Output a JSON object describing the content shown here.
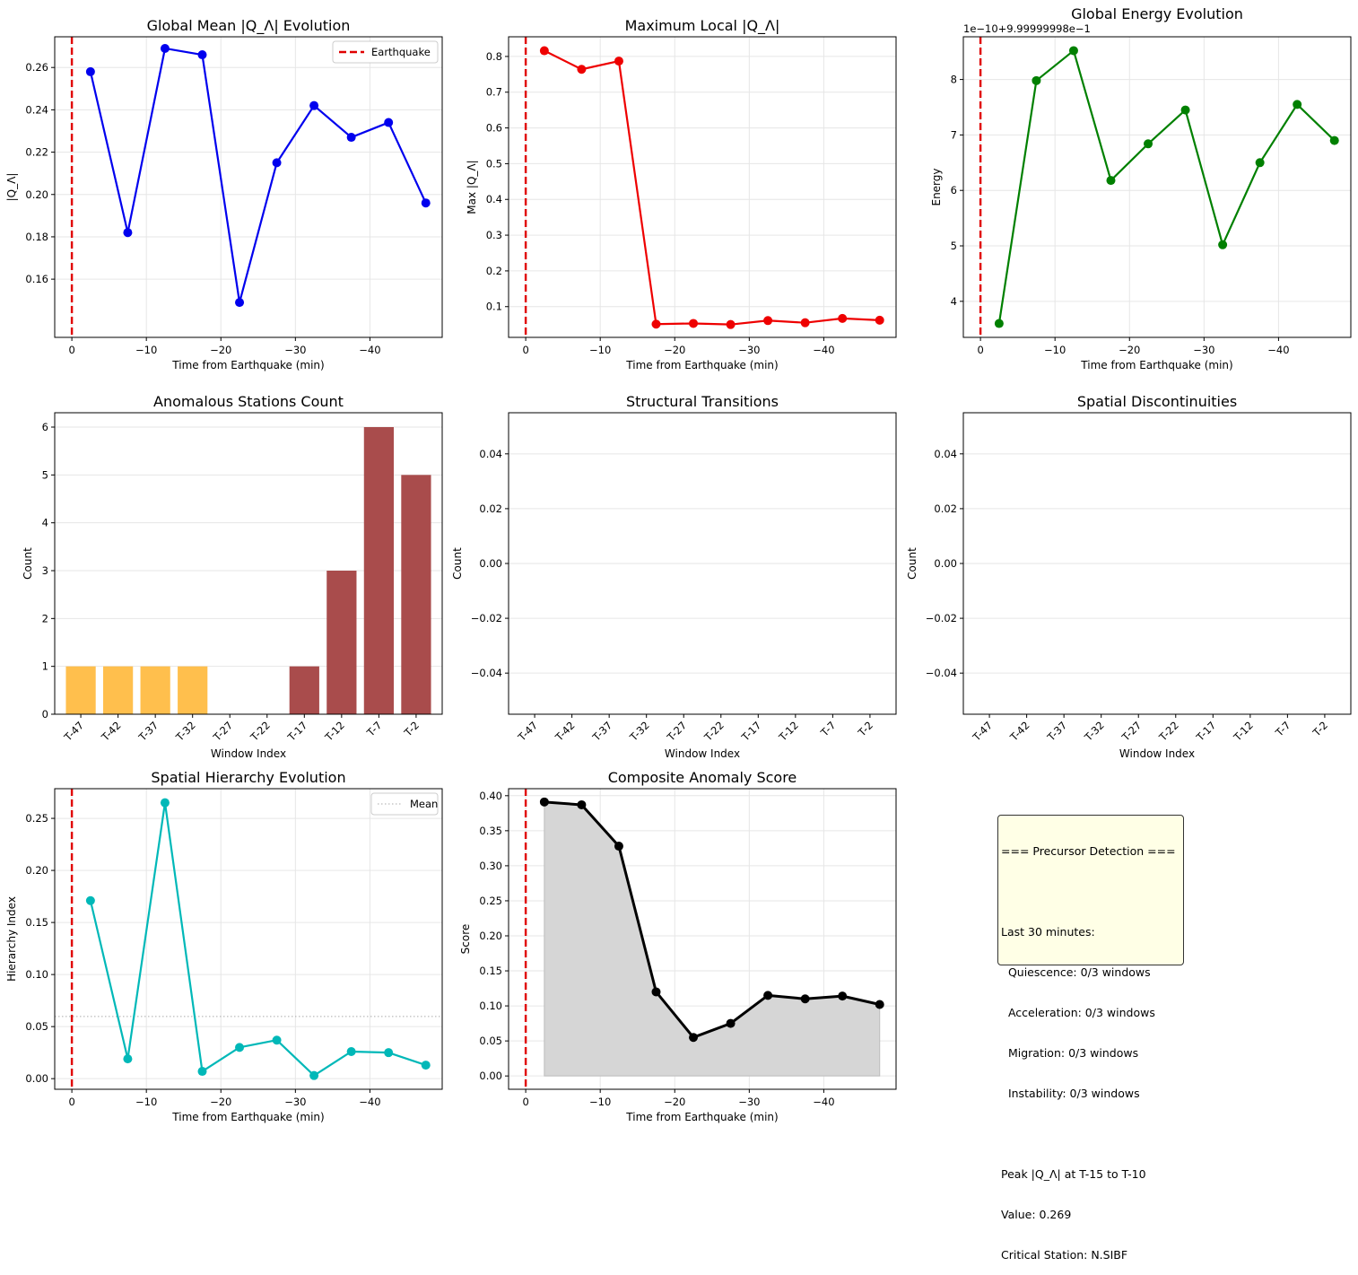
{
  "chart_data": [
    {
      "id": "global-mean",
      "type": "line",
      "title": "Global Mean |Q_Λ| Evolution",
      "xlabel": "Time from Earthquake (min)",
      "ylabel": "|Q_Λ|",
      "x": [
        -2.5,
        -7.5,
        -12.5,
        -17.5,
        -22.5,
        -27.5,
        -32.5,
        -37.5,
        -42.5,
        -47.5
      ],
      "values": [
        0.258,
        0.182,
        0.269,
        0.266,
        0.149,
        0.215,
        0.242,
        0.227,
        0.234,
        0.196
      ],
      "xlim": [
        2.3,
        -49.7
      ],
      "ylim": [
        0.1325,
        0.2745
      ],
      "xticks": [
        0,
        -10,
        -20,
        -30,
        -40
      ],
      "xtick_labels": [
        "0",
        "−10",
        "−20",
        "−30",
        "−40"
      ],
      "yticks": [
        0.16,
        0.18,
        0.2,
        0.22,
        0.24,
        0.26
      ],
      "ytick_labels": [
        "0.16",
        "0.18",
        "0.20",
        "0.22",
        "0.24",
        "0.26"
      ],
      "color": "#0000ee",
      "earthquake_line": 0,
      "legend": {
        "label": "Earthquake",
        "position": "top-right"
      }
    },
    {
      "id": "max-local",
      "type": "line",
      "title": "Maximum Local |Q_Λ|",
      "xlabel": "Time from Earthquake (min)",
      "ylabel": "Max |Q_Λ|",
      "x": [
        -2.5,
        -7.5,
        -12.5,
        -17.5,
        -22.5,
        -27.5,
        -32.5,
        -37.5,
        -42.5,
        -47.5
      ],
      "values": [
        0.816,
        0.764,
        0.787,
        0.051,
        0.053,
        0.05,
        0.061,
        0.055,
        0.067,
        0.062
      ],
      "xlim": [
        2.3,
        -49.7
      ],
      "ylim": [
        0.014,
        0.855
      ],
      "xticks": [
        0,
        -10,
        -20,
        -30,
        -40
      ],
      "xtick_labels": [
        "0",
        "−10",
        "−20",
        "−30",
        "−40"
      ],
      "yticks": [
        0.1,
        0.2,
        0.3,
        0.4,
        0.5,
        0.6,
        0.7,
        0.8
      ],
      "ytick_labels": [
        "0.1",
        "0.2",
        "0.3",
        "0.4",
        "0.5",
        "0.6",
        "0.7",
        "0.8"
      ],
      "color": "#ee0000",
      "earthquake_line": 0
    },
    {
      "id": "global-energy",
      "type": "line",
      "title": "Global Energy Evolution",
      "xlabel": "Time from Earthquake (min)",
      "ylabel": "Energy",
      "offset_label": "1e−10+9.99999998e−1",
      "x": [
        -2.5,
        -7.5,
        -12.5,
        -17.5,
        -22.5,
        -27.5,
        -32.5,
        -37.5,
        -42.5,
        -47.5
      ],
      "values": [
        3.6,
        7.98,
        8.52,
        6.18,
        6.84,
        7.45,
        5.02,
        6.5,
        7.55,
        6.9
      ],
      "xlim": [
        2.3,
        -49.7
      ],
      "ylim": [
        3.35,
        8.77
      ],
      "xticks": [
        0,
        -10,
        -20,
        -30,
        -40
      ],
      "xtick_labels": [
        "0",
        "−10",
        "−20",
        "−30",
        "−40"
      ],
      "yticks": [
        4,
        5,
        6,
        7,
        8
      ],
      "ytick_labels": [
        "4",
        "5",
        "6",
        "7",
        "8"
      ],
      "color": "#008000",
      "earthquake_line": 0
    },
    {
      "id": "anomalous-stations",
      "type": "bar",
      "title": "Anomalous Stations Count",
      "xlabel": "Window Index",
      "ylabel": "Count",
      "categories": [
        "T-47",
        "T-42",
        "T-37",
        "T-32",
        "T-27",
        "T-22",
        "T-17",
        "T-12",
        "T-7",
        "T-2"
      ],
      "values": [
        1,
        1,
        1,
        1,
        0,
        0,
        1,
        3,
        6,
        5
      ],
      "bar_colors": [
        "#ffbf4d",
        "#ffbf4d",
        "#ffbf4d",
        "#ffbf4d",
        "#ffbf4d",
        "#ffbf4d",
        "#a94c4c",
        "#a94c4c",
        "#a94c4c",
        "#a94c4c"
      ],
      "ylim": [
        0,
        6.3
      ],
      "yticks": [
        0,
        1,
        2,
        3,
        4,
        5,
        6
      ],
      "ytick_labels": [
        "0",
        "1",
        "2",
        "3",
        "4",
        "5",
        "6"
      ]
    },
    {
      "id": "structural-transitions",
      "type": "bar",
      "title": "Structural Transitions",
      "xlabel": "Window Index",
      "ylabel": "Count",
      "categories": [
        "T-47",
        "T-42",
        "T-37",
        "T-32",
        "T-27",
        "T-22",
        "T-17",
        "T-12",
        "T-7",
        "T-2"
      ],
      "values": [
        0,
        0,
        0,
        0,
        0,
        0,
        0,
        0,
        0,
        0
      ],
      "ylim": [
        -0.055,
        0.055
      ],
      "yticks": [
        0.04,
        0.02,
        0.0,
        -0.02,
        -0.04
      ],
      "ytick_labels": [
        "0.04",
        "0.02",
        "0.00",
        "−0.02",
        "−0.04"
      ]
    },
    {
      "id": "spatial-discontinuities",
      "type": "bar",
      "title": "Spatial Discontinuities",
      "xlabel": "Window Index",
      "ylabel": "Count",
      "categories": [
        "T-47",
        "T-42",
        "T-37",
        "T-32",
        "T-27",
        "T-22",
        "T-17",
        "T-12",
        "T-7",
        "T-2"
      ],
      "values": [
        0,
        0,
        0,
        0,
        0,
        0,
        0,
        0,
        0,
        0
      ],
      "ylim": [
        -0.055,
        0.055
      ],
      "yticks": [
        0.04,
        0.02,
        0.0,
        -0.02,
        -0.04
      ],
      "ytick_labels": [
        "0.04",
        "0.02",
        "0.00",
        "−0.02",
        "−0.04"
      ]
    },
    {
      "id": "spatial-hierarchy",
      "type": "line",
      "title": "Spatial Hierarchy Evolution",
      "xlabel": "Time from Earthquake (min)",
      "ylabel": "Hierarchy Index",
      "x": [
        -2.5,
        -7.5,
        -12.5,
        -17.5,
        -22.5,
        -27.5,
        -32.5,
        -37.5,
        -42.5,
        -47.5
      ],
      "values": [
        0.171,
        0.019,
        0.265,
        0.007,
        0.03,
        0.037,
        0.003,
        0.026,
        0.025,
        0.013
      ],
      "mean": 0.0597,
      "xlim": [
        2.3,
        -49.7
      ],
      "ylim": [
        -0.0102,
        0.2785
      ],
      "xticks": [
        0,
        -10,
        -20,
        -30,
        -40
      ],
      "xtick_labels": [
        "0",
        "−10",
        "−20",
        "−30",
        "−40"
      ],
      "yticks": [
        0.0,
        0.05,
        0.1,
        0.15,
        0.2,
        0.25
      ],
      "ytick_labels": [
        "0.00",
        "0.05",
        "0.10",
        "0.15",
        "0.20",
        "0.25"
      ],
      "color": "#00b8b8",
      "earthquake_line": 0,
      "legend": {
        "label": "Mean",
        "position": "top-right"
      }
    },
    {
      "id": "composite-score",
      "type": "area",
      "title": "Composite Anomaly Score",
      "xlabel": "Time from Earthquake (min)",
      "ylabel": "Score",
      "x": [
        -2.5,
        -7.5,
        -12.5,
        -17.5,
        -22.5,
        -27.5,
        -32.5,
        -37.5,
        -42.5,
        -47.5
      ],
      "values": [
        0.391,
        0.387,
        0.328,
        0.12,
        0.055,
        0.075,
        0.115,
        0.11,
        0.114,
        0.102
      ],
      "xlim": [
        2.3,
        -49.7
      ],
      "ylim": [
        -0.019,
        0.41
      ],
      "xticks": [
        0,
        -10,
        -20,
        -30,
        -40
      ],
      "xtick_labels": [
        "0",
        "−10",
        "−20",
        "−30",
        "−40"
      ],
      "yticks": [
        0.0,
        0.05,
        0.1,
        0.15,
        0.2,
        0.25,
        0.3,
        0.35,
        0.4
      ],
      "ytick_labels": [
        "0.00",
        "0.05",
        "0.10",
        "0.15",
        "0.20",
        "0.25",
        "0.30",
        "0.35",
        "0.40"
      ],
      "color": "#000000",
      "earthquake_line": 0
    }
  ],
  "summary": {
    "lines": [
      "=== Precursor Detection ===",
      "",
      "Last 30 minutes:",
      "  Quiescence: 0/3 windows",
      "  Acceleration: 0/3 windows",
      "  Migration: 0/3 windows",
      "  Instability: 0/3 windows",
      "",
      "Peak |Q_Λ| at T-15 to T-10",
      "Value: 0.269",
      "Critical Station: N.SIBF"
    ]
  }
}
